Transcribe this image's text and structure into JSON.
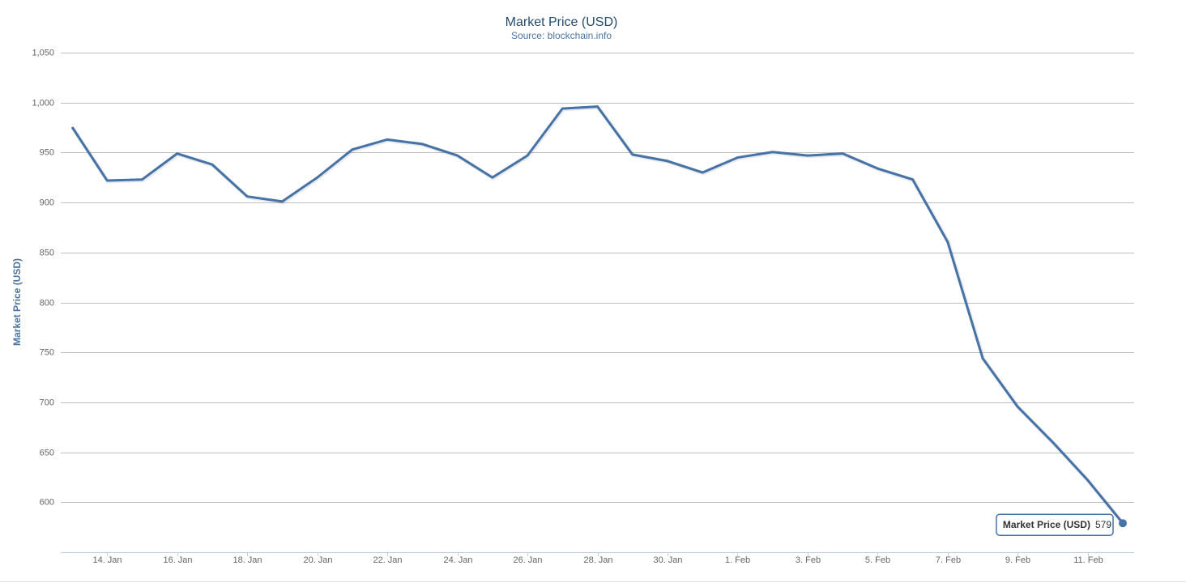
{
  "chart_data": {
    "type": "line",
    "title": "Market Price (USD)",
    "subtitle": "Source: blockchain.info",
    "y_axis_label": "Market Price (USD)",
    "categories": [
      null,
      "14. Jan",
      null,
      "16. Jan",
      null,
      "18. Jan",
      null,
      "20. Jan",
      null,
      "22. Jan",
      null,
      "24. Jan",
      null,
      "26. Jan",
      null,
      "28. Jan",
      null,
      "30. Jan",
      null,
      "1. Feb",
      null,
      "3. Feb",
      null,
      "5. Feb",
      null,
      "7. Feb",
      null,
      "9. Feb",
      null,
      "11. Feb",
      null
    ],
    "series": [
      {
        "name": "Market Price (USD)",
        "color": "#4572a7",
        "values": [
          975.5,
          922,
          923,
          949,
          938,
          906,
          901,
          925,
          953,
          963,
          958.5,
          947,
          925,
          947,
          994,
          996,
          948,
          941.5,
          930,
          945,
          950.5,
          947,
          949,
          934,
          923,
          860.5,
          744,
          695.5,
          660,
          622,
          579
        ]
      }
    ],
    "ylim": [
      550,
      1050
    ],
    "yticks": [
      600,
      650,
      700,
      750,
      800,
      850,
      900,
      950,
      {
        "value": 1000,
        "label": "1,000"
      },
      {
        "value": 1050,
        "label": "1,050"
      }
    ],
    "grid": true,
    "tooltip_index": 30
  }
}
